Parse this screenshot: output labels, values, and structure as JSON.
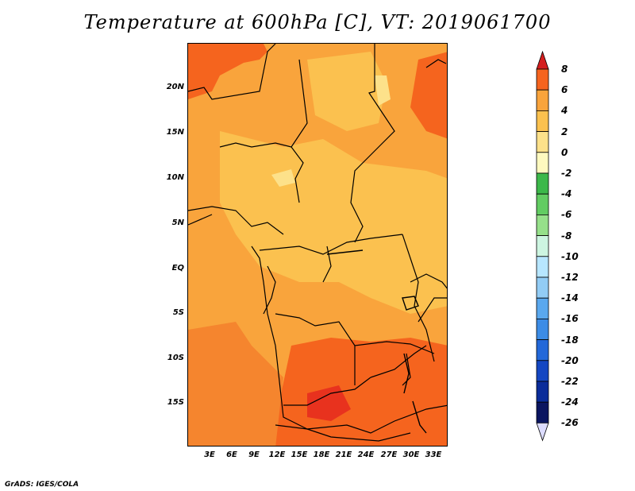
{
  "title": "Temperature at 600hPa [C], VT: 2019061700",
  "credit": "GrADS: IGES/COLA",
  "map": {
    "lat_labels": [
      "20N",
      "15N",
      "10N",
      "5N",
      "EQ",
      "5S",
      "10S",
      "15S"
    ],
    "lon_labels": [
      "3E",
      "6E",
      "9E",
      "12E",
      "15E",
      "18E",
      "21E",
      "24E",
      "27E",
      "30E",
      "33E"
    ],
    "base_color": "#f9a43c"
  },
  "colorbar": {
    "labels": [
      "8",
      "6",
      "4",
      "2",
      "0",
      "-2",
      "-4",
      "-6",
      "-8",
      "-10",
      "-12",
      "-14",
      "-16",
      "-18",
      "-20",
      "-22",
      "-24",
      "-26"
    ],
    "colors": [
      "#e8321e",
      "#f5641e",
      "#f9a43c",
      "#fbc14f",
      "#fde18a",
      "#fef9bf",
      "#3cb84a",
      "#62cc62",
      "#96e08a",
      "#cdf5e1",
      "#b7e6ff",
      "#92ccf5",
      "#5aa8ee",
      "#3c8ce6",
      "#2368d9",
      "#1447c2",
      "#0a2c9a",
      "#0a1560"
    ],
    "top_arrow_color": "#d41e1e",
    "bottom_arrow_color": "#dcdcff"
  }
}
